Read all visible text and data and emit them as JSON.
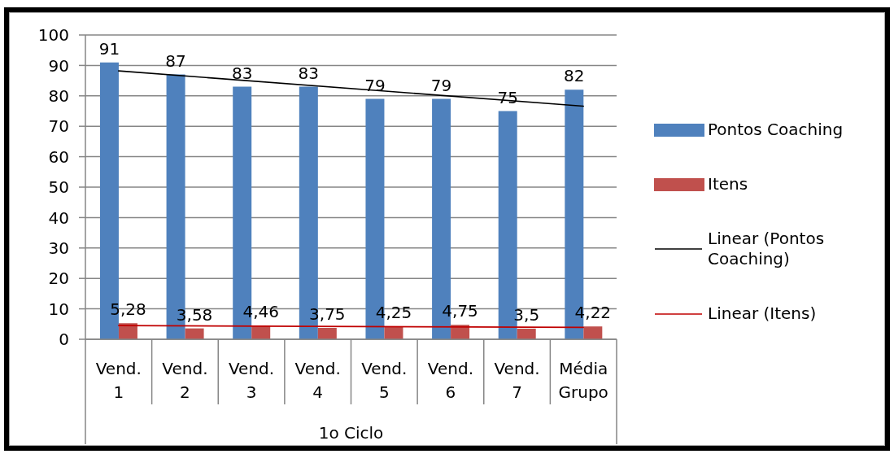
{
  "chart_data": {
    "type": "bar",
    "xlabel": "1o Ciclo",
    "categories": [
      "Vend. 1",
      "Vend. 2",
      "Vend. 3",
      "Vend. 4",
      "Vend. 5",
      "Vend. 6",
      "Vend. 7",
      "Média Grupo"
    ],
    "series": [
      {
        "name": "Pontos Coaching",
        "color": "#4f81bd",
        "values": [
          91,
          87,
          83,
          83,
          79,
          79,
          75,
          82
        ],
        "value_labels": [
          "91",
          "87",
          "83",
          "83",
          "79",
          "79",
          "75",
          "82"
        ]
      },
      {
        "name": "Itens",
        "color": "#c0504d",
        "values": [
          5.28,
          3.58,
          4.46,
          3.75,
          4.25,
          4.75,
          3.5,
          4.22
        ],
        "value_labels": [
          "5,28",
          "3,58",
          "4,46",
          "3,75",
          "4,25",
          "4,75",
          "3,5",
          "4,22"
        ]
      },
      {
        "name": "Linear (Pontos Coaching)",
        "type": "line",
        "color": "#000000",
        "x": [
          "Vend. 1",
          "Média Grupo"
        ],
        "values": [
          88.2,
          76.6
        ]
      },
      {
        "name": "Linear (Itens)",
        "type": "line",
        "color": "#c00000",
        "x": [
          "Vend. 1",
          "Média Grupo"
        ],
        "values": [
          4.5,
          3.9
        ]
      }
    ],
    "ylim": [
      0,
      100
    ],
    "yticks": [
      0,
      10,
      20,
      30,
      40,
      50,
      60,
      70,
      80,
      90,
      100
    ],
    "grid": "y",
    "legend": "right",
    "marker": "none",
    "line_style": "solid"
  }
}
